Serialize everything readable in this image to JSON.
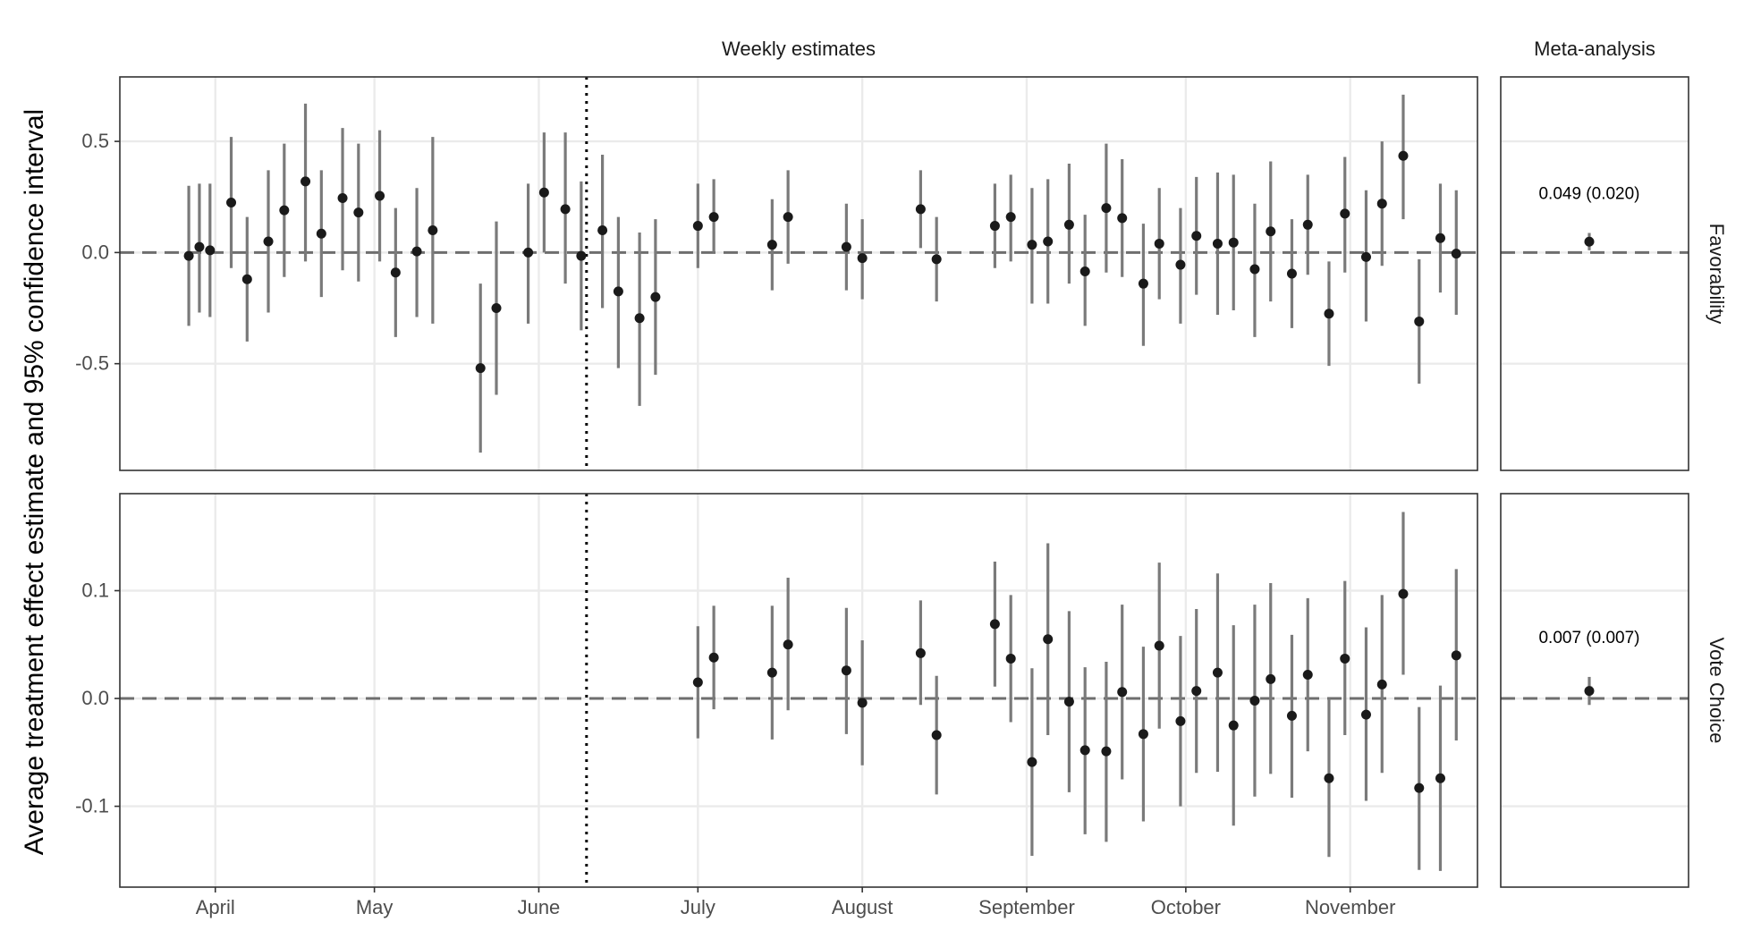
{
  "chart_data": {
    "type": "scatter",
    "ylabel": "Average treatment effect estimate and 95% confidence interval",
    "facet_columns": [
      "Weekly estimates",
      "Meta-analysis"
    ],
    "facet_rows": [
      "Favorability",
      "Vote Choice"
    ],
    "xlim": [
      "2020-03-14",
      "2020-11-25"
    ],
    "x_ticks": [
      {
        "date": "2020-04-01",
        "label": "April"
      },
      {
        "date": "2020-05-01",
        "label": "May"
      },
      {
        "date": "2020-06-01",
        "label": "June"
      },
      {
        "date": "2020-07-01",
        "label": "July"
      },
      {
        "date": "2020-08-01",
        "label": "August"
      },
      {
        "date": "2020-09-01",
        "label": "September"
      },
      {
        "date": "2020-10-01",
        "label": "October"
      },
      {
        "date": "2020-11-01",
        "label": "November"
      }
    ],
    "vline_date": "2020-06-10",
    "hline_y": 0,
    "grid": true,
    "panels": [
      {
        "row": "Favorability",
        "ylim": [
          -0.98,
          0.79
        ],
        "y_ticks": [
          {
            "value": 0.5,
            "label": "0.5"
          },
          {
            "value": 0.0,
            "label": "0.0"
          },
          {
            "value": -0.5,
            "label": "-0.5"
          }
        ],
        "points": [
          {
            "date": "2020-03-27",
            "est": -0.015,
            "lo": -0.33,
            "hi": 0.3
          },
          {
            "date": "2020-03-29",
            "est": 0.025,
            "lo": -0.27,
            "hi": 0.31
          },
          {
            "date": "2020-03-31",
            "est": 0.01,
            "lo": -0.29,
            "hi": 0.31
          },
          {
            "date": "2020-04-04",
            "est": 0.225,
            "lo": -0.07,
            "hi": 0.52
          },
          {
            "date": "2020-04-07",
            "est": -0.12,
            "lo": -0.4,
            "hi": 0.16
          },
          {
            "date": "2020-04-11",
            "est": 0.05,
            "lo": -0.27,
            "hi": 0.37
          },
          {
            "date": "2020-04-14",
            "est": 0.19,
            "lo": -0.11,
            "hi": 0.49
          },
          {
            "date": "2020-04-18",
            "est": 0.32,
            "lo": -0.04,
            "hi": 0.67
          },
          {
            "date": "2020-04-21",
            "est": 0.085,
            "lo": -0.2,
            "hi": 0.37
          },
          {
            "date": "2020-04-25",
            "est": 0.245,
            "lo": -0.08,
            "hi": 0.56
          },
          {
            "date": "2020-04-28",
            "est": 0.18,
            "lo": -0.13,
            "hi": 0.49
          },
          {
            "date": "2020-05-02",
            "est": 0.255,
            "lo": -0.04,
            "hi": 0.55
          },
          {
            "date": "2020-05-05",
            "est": -0.09,
            "lo": -0.38,
            "hi": 0.2
          },
          {
            "date": "2020-05-09",
            "est": 0.005,
            "lo": -0.29,
            "hi": 0.29
          },
          {
            "date": "2020-05-12",
            "est": 0.1,
            "lo": -0.32,
            "hi": 0.52
          },
          {
            "date": "2020-05-21",
            "est": -0.52,
            "lo": -0.9,
            "hi": -0.14
          },
          {
            "date": "2020-05-24",
            "est": -0.25,
            "lo": -0.64,
            "hi": 0.14
          },
          {
            "date": "2020-05-30",
            "est": 0.0,
            "lo": -0.32,
            "hi": 0.31
          },
          {
            "date": "2020-06-02",
            "est": 0.27,
            "lo": 0.0,
            "hi": 0.54
          },
          {
            "date": "2020-06-06",
            "est": 0.195,
            "lo": -0.14,
            "hi": 0.54
          },
          {
            "date": "2020-06-09",
            "est": -0.015,
            "lo": -0.35,
            "hi": 0.32
          },
          {
            "date": "2020-06-13",
            "est": 0.1,
            "lo": -0.25,
            "hi": 0.44
          },
          {
            "date": "2020-06-16",
            "est": -0.175,
            "lo": -0.52,
            "hi": 0.16
          },
          {
            "date": "2020-06-20",
            "est": -0.295,
            "lo": -0.69,
            "hi": 0.09
          },
          {
            "date": "2020-06-23",
            "est": -0.2,
            "lo": -0.55,
            "hi": 0.15
          },
          {
            "date": "2020-07-01",
            "est": 0.12,
            "lo": -0.07,
            "hi": 0.31
          },
          {
            "date": "2020-07-04",
            "est": 0.16,
            "lo": 0.0,
            "hi": 0.33
          },
          {
            "date": "2020-07-15",
            "est": 0.035,
            "lo": -0.17,
            "hi": 0.24
          },
          {
            "date": "2020-07-18",
            "est": 0.16,
            "lo": -0.05,
            "hi": 0.37
          },
          {
            "date": "2020-07-29",
            "est": 0.025,
            "lo": -0.17,
            "hi": 0.22
          },
          {
            "date": "2020-08-01",
            "est": -0.025,
            "lo": -0.21,
            "hi": 0.15
          },
          {
            "date": "2020-08-12",
            "est": 0.195,
            "lo": 0.02,
            "hi": 0.37
          },
          {
            "date": "2020-08-15",
            "est": -0.03,
            "lo": -0.22,
            "hi": 0.16
          },
          {
            "date": "2020-08-26",
            "est": 0.12,
            "lo": -0.07,
            "hi": 0.31
          },
          {
            "date": "2020-08-29",
            "est": 0.16,
            "lo": -0.04,
            "hi": 0.35
          },
          {
            "date": "2020-09-02",
            "est": 0.035,
            "lo": -0.23,
            "hi": 0.29
          },
          {
            "date": "2020-09-05",
            "est": 0.05,
            "lo": -0.23,
            "hi": 0.33
          },
          {
            "date": "2020-09-09",
            "est": 0.125,
            "lo": -0.14,
            "hi": 0.4
          },
          {
            "date": "2020-09-12",
            "est": -0.085,
            "lo": -0.33,
            "hi": 0.17
          },
          {
            "date": "2020-09-16",
            "est": 0.2,
            "lo": -0.09,
            "hi": 0.49
          },
          {
            "date": "2020-09-19",
            "est": 0.155,
            "lo": -0.11,
            "hi": 0.42
          },
          {
            "date": "2020-09-23",
            "est": -0.14,
            "lo": -0.42,
            "hi": 0.13
          },
          {
            "date": "2020-09-26",
            "est": 0.04,
            "lo": -0.21,
            "hi": 0.29
          },
          {
            "date": "2020-09-30",
            "est": -0.055,
            "lo": -0.32,
            "hi": 0.2
          },
          {
            "date": "2020-10-03",
            "est": 0.075,
            "lo": -0.19,
            "hi": 0.34
          },
          {
            "date": "2020-10-07",
            "est": 0.04,
            "lo": -0.28,
            "hi": 0.36
          },
          {
            "date": "2020-10-10",
            "est": 0.045,
            "lo": -0.26,
            "hi": 0.35
          },
          {
            "date": "2020-10-14",
            "est": -0.075,
            "lo": -0.38,
            "hi": 0.22
          },
          {
            "date": "2020-10-17",
            "est": 0.095,
            "lo": -0.22,
            "hi": 0.41
          },
          {
            "date": "2020-10-21",
            "est": -0.095,
            "lo": -0.34,
            "hi": 0.15
          },
          {
            "date": "2020-10-24",
            "est": 0.125,
            "lo": -0.1,
            "hi": 0.35
          },
          {
            "date": "2020-10-28",
            "est": -0.275,
            "lo": -0.51,
            "hi": -0.04
          },
          {
            "date": "2020-10-31",
            "est": 0.175,
            "lo": -0.09,
            "hi": 0.43
          },
          {
            "date": "2020-11-04",
            "est": -0.02,
            "lo": -0.31,
            "hi": 0.28
          },
          {
            "date": "2020-11-07",
            "est": 0.22,
            "lo": -0.06,
            "hi": 0.5
          },
          {
            "date": "2020-11-11",
            "est": 0.435,
            "lo": 0.15,
            "hi": 0.71
          },
          {
            "date": "2020-11-14",
            "est": -0.31,
            "lo": -0.59,
            "hi": -0.03
          },
          {
            "date": "2020-11-18",
            "est": 0.065,
            "lo": -0.18,
            "hi": 0.31
          },
          {
            "date": "2020-11-21",
            "est": -0.005,
            "lo": -0.28,
            "hi": 0.28
          }
        ],
        "meta": {
          "est": 0.049,
          "lo": 0.01,
          "hi": 0.088,
          "label": "0.049 (0.020)"
        }
      },
      {
        "row": "Vote Choice",
        "ylim": [
          -0.175,
          0.19
        ],
        "y_ticks": [
          {
            "value": 0.1,
            "label": "0.1"
          },
          {
            "value": 0.0,
            "label": "0.0"
          },
          {
            "value": -0.1,
            "label": "-0.1"
          }
        ],
        "points": [
          {
            "date": "2020-07-01",
            "est": 0.015,
            "lo": -0.037,
            "hi": 0.067
          },
          {
            "date": "2020-07-04",
            "est": 0.038,
            "lo": -0.01,
            "hi": 0.086
          },
          {
            "date": "2020-07-15",
            "est": 0.024,
            "lo": -0.038,
            "hi": 0.086
          },
          {
            "date": "2020-07-18",
            "est": 0.05,
            "lo": -0.011,
            "hi": 0.112
          },
          {
            "date": "2020-07-29",
            "est": 0.026,
            "lo": -0.033,
            "hi": 0.084
          },
          {
            "date": "2020-08-01",
            "est": -0.004,
            "lo": -0.062,
            "hi": 0.054
          },
          {
            "date": "2020-08-12",
            "est": 0.042,
            "lo": -0.006,
            "hi": 0.091
          },
          {
            "date": "2020-08-15",
            "est": -0.034,
            "lo": -0.089,
            "hi": 0.021
          },
          {
            "date": "2020-08-26",
            "est": 0.069,
            "lo": 0.011,
            "hi": 0.127
          },
          {
            "date": "2020-08-29",
            "est": 0.037,
            "lo": -0.022,
            "hi": 0.096
          },
          {
            "date": "2020-09-02",
            "est": -0.059,
            "lo": -0.146,
            "hi": 0.028
          },
          {
            "date": "2020-09-05",
            "est": 0.055,
            "lo": -0.034,
            "hi": 0.144
          },
          {
            "date": "2020-09-09",
            "est": -0.003,
            "lo": -0.087,
            "hi": 0.081
          },
          {
            "date": "2020-09-12",
            "est": -0.048,
            "lo": -0.126,
            "hi": 0.029
          },
          {
            "date": "2020-09-16",
            "est": -0.049,
            "lo": -0.133,
            "hi": 0.034
          },
          {
            "date": "2020-09-19",
            "est": 0.006,
            "lo": -0.075,
            "hi": 0.087
          },
          {
            "date": "2020-09-23",
            "est": -0.033,
            "lo": -0.114,
            "hi": 0.048
          },
          {
            "date": "2020-09-26",
            "est": 0.049,
            "lo": -0.028,
            "hi": 0.126
          },
          {
            "date": "2020-09-30",
            "est": -0.021,
            "lo": -0.1,
            "hi": 0.058
          },
          {
            "date": "2020-10-03",
            "est": 0.007,
            "lo": -0.069,
            "hi": 0.083
          },
          {
            "date": "2020-10-07",
            "est": 0.024,
            "lo": -0.068,
            "hi": 0.116
          },
          {
            "date": "2020-10-10",
            "est": -0.025,
            "lo": -0.118,
            "hi": 0.068
          },
          {
            "date": "2020-10-14",
            "est": -0.002,
            "lo": -0.091,
            "hi": 0.087
          },
          {
            "date": "2020-10-17",
            "est": 0.018,
            "lo": -0.07,
            "hi": 0.107
          },
          {
            "date": "2020-10-21",
            "est": -0.016,
            "lo": -0.092,
            "hi": 0.059
          },
          {
            "date": "2020-10-24",
            "est": 0.022,
            "lo": -0.049,
            "hi": 0.093
          },
          {
            "date": "2020-10-28",
            "est": -0.074,
            "lo": -0.147,
            "hi": 0.0
          },
          {
            "date": "2020-10-31",
            "est": 0.037,
            "lo": -0.034,
            "hi": 0.109
          },
          {
            "date": "2020-11-04",
            "est": -0.015,
            "lo": -0.095,
            "hi": 0.066
          },
          {
            "date": "2020-11-07",
            "est": 0.013,
            "lo": -0.069,
            "hi": 0.096
          },
          {
            "date": "2020-11-11",
            "est": 0.097,
            "lo": 0.022,
            "hi": 0.173
          },
          {
            "date": "2020-11-14",
            "est": -0.083,
            "lo": -0.159,
            "hi": -0.008
          },
          {
            "date": "2020-11-18",
            "est": -0.074,
            "lo": -0.16,
            "hi": 0.012
          },
          {
            "date": "2020-11-21",
            "est": 0.04,
            "lo": -0.039,
            "hi": 0.12
          }
        ],
        "meta": {
          "est": 0.007,
          "lo": -0.006,
          "hi": 0.02,
          "label": "0.007 (0.007)"
        }
      }
    ]
  },
  "colors": {
    "point": "#1a1a1a",
    "errorbar": "#7a7a7a",
    "grid": "#ebebeb",
    "reference_line": "#6e6e6e",
    "panel_border": "#333333"
  }
}
